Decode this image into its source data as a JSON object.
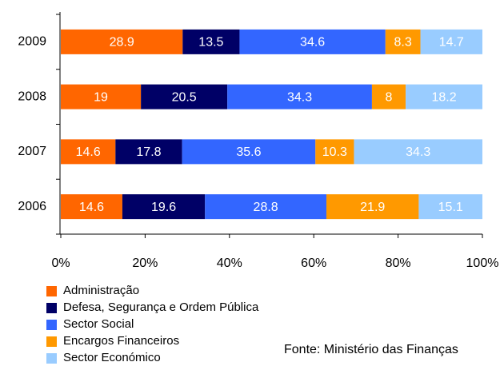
{
  "chart_data": {
    "type": "bar",
    "orientation": "horizontal",
    "stacking": "percent",
    "categories": [
      "2009",
      "2008",
      "2007",
      "2006"
    ],
    "series": [
      {
        "name": "Administração",
        "color": "#ff6600",
        "values": [
          28.9,
          19,
          14.6,
          14.6
        ]
      },
      {
        "name": "Defesa, Segurança e Ordem Pública",
        "color": "#000066",
        "values": [
          13.5,
          20.5,
          17.8,
          19.6
        ]
      },
      {
        "name": "Sector Social",
        "color": "#3366ff",
        "values": [
          34.6,
          34.3,
          35.6,
          28.8
        ]
      },
      {
        "name": "Encargos Financeiros",
        "color": "#ff9900",
        "values": [
          8.3,
          8,
          10.3,
          21.9
        ]
      },
      {
        "name": "Sector Económico",
        "color": "#99ccff",
        "values": [
          14.7,
          18.2,
          34.3,
          15.1
        ]
      }
    ],
    "xlim": [
      0,
      100
    ],
    "xticks": [
      {
        "value": 0,
        "label": "0%"
      },
      {
        "value": 20,
        "label": "20%"
      },
      {
        "value": 40,
        "label": "40%"
      },
      {
        "value": 60,
        "label": "60%"
      },
      {
        "value": 80,
        "label": "80%"
      },
      {
        "value": 100,
        "label": "100%"
      }
    ],
    "source": "Fonte: Ministério das Finanças"
  }
}
